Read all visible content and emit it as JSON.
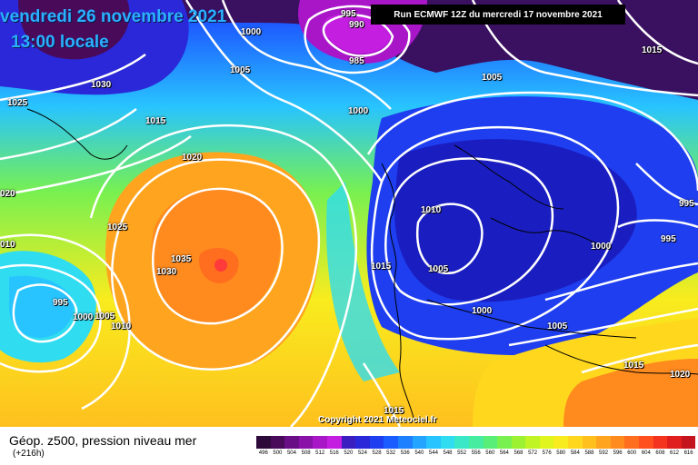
{
  "header": {
    "title_date": "vendredi 26 novembre 2021",
    "title_time": "13:00 locale",
    "run_info": "Run ECMWF 12Z du mercredi 17 novembre 2021",
    "copyright": "Copyright 2021 Meteociel.fr"
  },
  "legend": {
    "title": "Géop. z500, pression niveau mer",
    "subtitle": "(+216h)",
    "colors": [
      "#2d0a3a",
      "#4a0a5a",
      "#6a0e86",
      "#8a12a8",
      "#a816c8",
      "#c41ee0",
      "#3a1ec0",
      "#2a28d8",
      "#1e3ef0",
      "#1a5cff",
      "#1e80ff",
      "#22a4ff",
      "#28c4ff",
      "#30dcf0",
      "#3ae8c8",
      "#46eca0",
      "#58ee78",
      "#78f050",
      "#9cf232",
      "#c0f424",
      "#e0f41e",
      "#f8ec1e",
      "#ffd81e",
      "#ffc01e",
      "#ffa41e",
      "#ff8a1e",
      "#ff6e1e",
      "#ff501e",
      "#f4341e",
      "#e01e1e",
      "#c4141e",
      "#a80e1e",
      "#8c0a1e",
      "#700a1a",
      "#540814",
      "#380610",
      "#1c040a",
      "#000000"
    ],
    "ticks": [
      "496",
      "500",
      "504",
      "508",
      "512",
      "516",
      "520",
      "524",
      "528",
      "532",
      "536",
      "540",
      "544",
      "548",
      "552",
      "556",
      "560",
      "564",
      "568",
      "572",
      "576",
      "580",
      "584",
      "588",
      "592",
      "596",
      "600",
      "604",
      "608",
      "612",
      "616"
    ]
  },
  "isobar_labels": [
    {
      "text": "995"
    },
    {
      "text": "990"
    },
    {
      "text": "985"
    },
    {
      "text": "1000"
    },
    {
      "text": "1005"
    },
    {
      "text": "1005"
    },
    {
      "text": "1015"
    },
    {
      "text": "1030"
    },
    {
      "text": "1025"
    },
    {
      "text": "1015"
    },
    {
      "text": "1000"
    },
    {
      "text": "1020"
    },
    {
      "text": "020"
    },
    {
      "text": "1025"
    },
    {
      "text": "1035"
    },
    {
      "text": "1030"
    },
    {
      "text": "010"
    },
    {
      "text": "995"
    },
    {
      "text": "1000"
    },
    {
      "text": "1005"
    },
    {
      "text": "1010"
    },
    {
      "text": "1010"
    },
    {
      "text": "1015"
    },
    {
      "text": "1005"
    },
    {
      "text": "1000"
    },
    {
      "text": "1000"
    },
    {
      "text": "995"
    },
    {
      "text": "995"
    },
    {
      "text": "1005"
    },
    {
      "text": "1015"
    },
    {
      "text": "1020"
    },
    {
      "text": "1015"
    }
  ]
}
